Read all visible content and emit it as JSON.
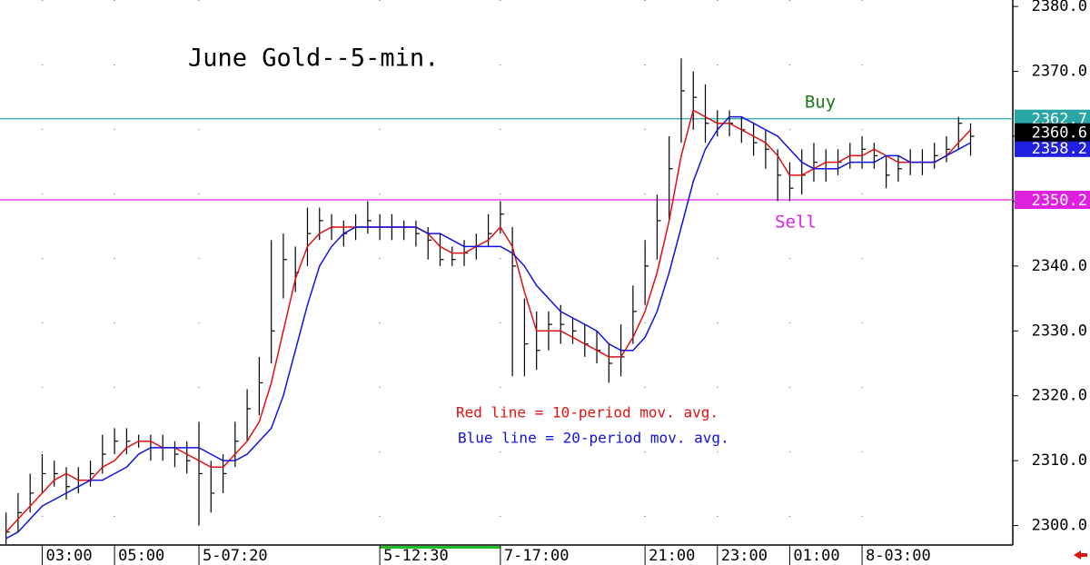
{
  "chart_data": {
    "type": "ohlc",
    "title": "June Gold--5-min.",
    "categories": [
      null,
      null,
      null,
      "03:00",
      null,
      null,
      null,
      null,
      null,
      "05:00",
      null,
      null,
      null,
      null,
      null,
      null,
      "5-07:20",
      null,
      null,
      null,
      null,
      null,
      null,
      null,
      null,
      null,
      null,
      null,
      null,
      null,
      null,
      "5-12:30",
      null,
      null,
      null,
      null,
      null,
      null,
      null,
      null,
      null,
      "7-17:00",
      null,
      null,
      null,
      null,
      null,
      null,
      null,
      null,
      null,
      null,
      null,
      "21:00",
      null,
      null,
      null,
      null,
      null,
      "23:00",
      null,
      null,
      null,
      null,
      null,
      "01:00",
      null,
      null,
      null,
      null,
      null,
      "8-03:00",
      null,
      null,
      null,
      null,
      null,
      null,
      null,
      null,
      null
    ],
    "high": [
      2302,
      2305,
      2308,
      2311,
      2310,
      2309,
      2309,
      2310,
      2314,
      2315,
      2315,
      2314,
      2314,
      2314,
      2313,
      2313,
      2316,
      2310,
      2311,
      2316,
      2321,
      2326,
      2344,
      2345,
      2343,
      2349,
      2349,
      2348,
      2347,
      2348,
      2350,
      2348,
      2348,
      2347,
      2347,
      2346,
      2345,
      2343,
      2344,
      2345,
      2348,
      2350,
      2346,
      2335,
      2333,
      2333,
      2334,
      2332,
      2331,
      2330,
      2328,
      2331,
      2337,
      2344,
      2351,
      2360,
      2372,
      2370,
      2368,
      2364,
      2364,
      2363,
      2362,
      2361,
      2358,
      2356,
      2358,
      2359,
      2358,
      2358,
      2359,
      2360,
      2359,
      2357,
      2357,
      2358,
      2358,
      2359,
      2360,
      2363,
      2362
    ],
    "low": [
      2297,
      2299,
      2302,
      2305,
      2306,
      2304,
      2305,
      2306,
      2308,
      2311,
      2311,
      2312,
      2310,
      2310,
      2309,
      2308,
      2300,
      2302,
      2305,
      2309,
      2313,
      2317,
      2325,
      2335,
      2336,
      2340,
      2344,
      2344,
      2343,
      2344,
      2345,
      2344,
      2344,
      2344,
      2343,
      2341,
      2340,
      2340,
      2340,
      2341,
      2343,
      2345,
      2323,
      2323,
      2324,
      2327,
      2328,
      2328,
      2326,
      2325,
      2322,
      2323,
      2328,
      2334,
      2341,
      2347,
      2359,
      2361,
      2359,
      2360,
      2360,
      2359,
      2357,
      2355,
      2350,
      2350,
      2351,
      2353,
      2353,
      2354,
      2355,
      2355,
      2355,
      2352,
      2353,
      2354,
      2354,
      2355,
      2356,
      2358,
      2357
    ],
    "close": [
      2299,
      2302,
      2305,
      2308,
      2308,
      2306,
      2307,
      2308,
      2311,
      2313,
      2313,
      2313,
      2312,
      2312,
      2311,
      2310,
      2308,
      2305,
      2308,
      2313,
      2318,
      2322,
      2330,
      2341,
      2339,
      2345,
      2347,
      2346,
      2345,
      2346,
      2347,
      2346,
      2346,
      2346,
      2345,
      2344,
      2341,
      2341,
      2342,
      2343,
      2345,
      2348,
      2340,
      2328,
      2327,
      2331,
      2331,
      2330,
      2328,
      2327,
      2325,
      2326,
      2333,
      2340,
      2347,
      2355,
      2367,
      2366,
      2362,
      2362,
      2362,
      2361,
      2359,
      2358,
      2354,
      2352,
      2354,
      2356,
      2355,
      2356,
      2357,
      2358,
      2357,
      2354,
      2355,
      2356,
      2356,
      2357,
      2358,
      2362,
      2360
    ],
    "color": "#000000",
    "lines": [
      {
        "color": "#e01010",
        "values": [
          2299,
          2301,
          2303,
          2305,
          2307,
          2308,
          2307,
          2307,
          2309,
          2310,
          2312,
          2313,
          2313,
          2312,
          2312,
          2311,
          2310,
          2309,
          2309,
          2311,
          2313,
          2316,
          2322,
          2330,
          2338,
          2343,
          2345,
          2346,
          2346,
          2346,
          2346,
          2346,
          2346,
          2346,
          2346,
          2345,
          2343,
          2342,
          2342,
          2343,
          2344,
          2346,
          2343,
          2336,
          2330,
          2330,
          2330,
          2329,
          2328,
          2327,
          2326,
          2326,
          2329,
          2333,
          2339,
          2347,
          2357,
          2364,
          2363,
          2362,
          2362,
          2361,
          2360,
          2359,
          2357,
          2354,
          2354,
          2355,
          2356,
          2356,
          2357,
          2357,
          2358,
          2357,
          2356,
          2356,
          2356,
          2356,
          2357,
          2359,
          2361
        ]
      },
      {
        "color": "#1010e0",
        "values": [
          2298,
          2299,
          2301,
          2303,
          2304,
          2305,
          2306,
          2307,
          2307,
          2308,
          2309,
          2311,
          2312,
          2312,
          2312,
          2312,
          2312,
          2311,
          2310,
          2310,
          2311,
          2313,
          2315,
          2320,
          2327,
          2334,
          2340,
          2343,
          2345,
          2346,
          2346,
          2346,
          2346,
          2346,
          2346,
          2345,
          2345,
          2344,
          2343,
          2343,
          2343,
          2343,
          2342,
          2340,
          2337,
          2335,
          2333,
          2332,
          2331,
          2330,
          2328,
          2327,
          2327,
          2329,
          2333,
          2339,
          2346,
          2353,
          2358,
          2361,
          2363,
          2363,
          2362,
          2361,
          2360,
          2358,
          2356,
          2355,
          2355,
          2355,
          2356,
          2356,
          2356,
          2357,
          2357,
          2356,
          2356,
          2356,
          2357,
          2358,
          2359
        ]
      }
    ],
    "levels": [
      {
        "value": 2362.7,
        "color": "#2aa6a6"
      },
      {
        "value": 2350.2,
        "color": "#e020e0"
      }
    ],
    "price_labels": [
      {
        "value": 2358.2,
        "color": "#2020e0"
      },
      {
        "value": 2360.6,
        "color": "#000000"
      }
    ],
    "annotations": [
      {
        "text": "Buy",
        "color": "#1a7a1a"
      },
      {
        "text": "Sell",
        "color": "#e020e0"
      },
      {
        "text": "Red line = 10-period mov. avg.",
        "color": "#e01010"
      },
      {
        "text": "Blue line = 20-period mov. avg.",
        "color": "#1010e0"
      }
    ],
    "ylim": [
      2297,
      2381
    ],
    "yticks": [
      {
        "value": 2300,
        "label": "2300.0"
      },
      {
        "value": 2310,
        "label": "2310.0"
      },
      {
        "value": 2320,
        "label": "2320.0"
      },
      {
        "value": 2330,
        "label": "2330.0"
      },
      {
        "value": 2340,
        "label": "2340.0"
      },
      {
        "value": 2350,
        "label": "2350.0"
      },
      {
        "value": 2360,
        "label": "2360.0"
      },
      {
        "value": 2370,
        "label": "2370.0"
      },
      {
        "value": 2380,
        "label": "2380.0"
      }
    ],
    "grid": true
  }
}
